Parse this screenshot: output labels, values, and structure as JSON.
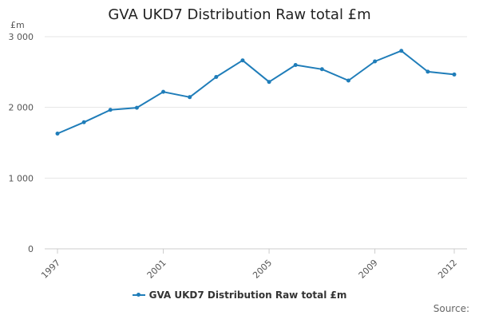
{
  "chart_data": {
    "type": "line",
    "title": "GVA UKD7 Distribution Raw total £m",
    "ylabel": "£m",
    "xlabel": "",
    "x": [
      1997,
      1998,
      1999,
      2000,
      2001,
      2002,
      2003,
      2004,
      2005,
      2006,
      2007,
      2008,
      2009,
      2010,
      2011,
      2012
    ],
    "series": [
      {
        "name": "GVA UKD7 Distribution Raw total £m",
        "values": [
          1630,
          1790,
          1965,
          1995,
          2220,
          2145,
          2430,
          2665,
          2360,
          2600,
          2540,
          2380,
          2650,
          2800,
          2505,
          2465
        ]
      }
    ],
    "x_ticks": [
      "1997",
      "2001",
      "2005",
      "2009",
      "2012"
    ],
    "y_ticks": [
      "0",
      "1 000",
      "2 000",
      "3 000"
    ],
    "ylim": [
      0,
      3000
    ],
    "grid": "horizontal",
    "legend_position": "bottom",
    "line_color": "#1f7db9",
    "source_label": "Source:"
  }
}
